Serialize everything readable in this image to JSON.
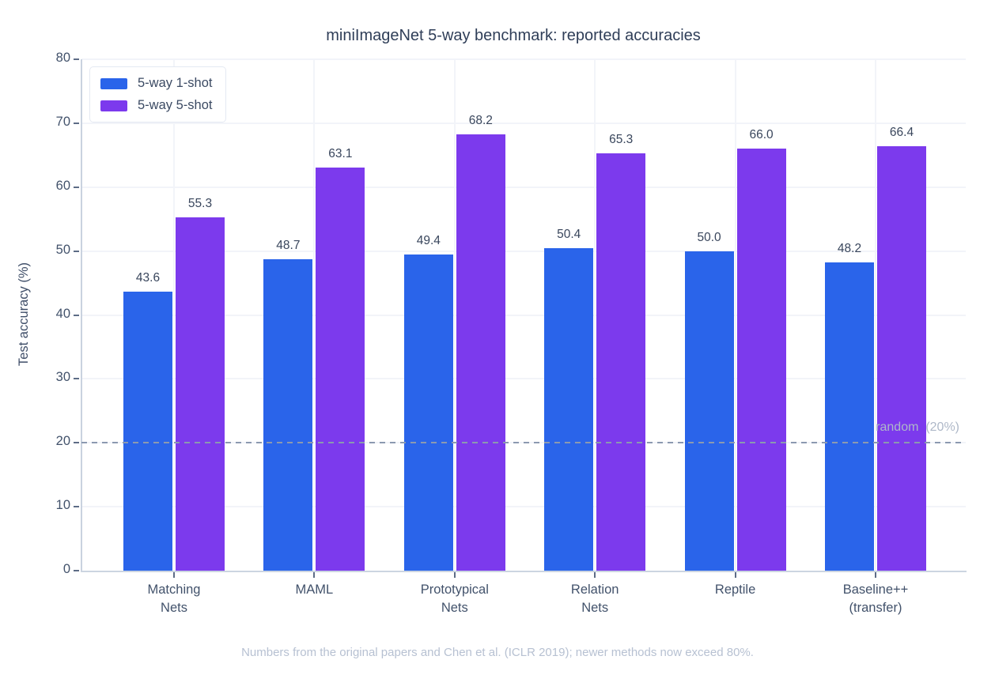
{
  "title": "miniImageNet 5-way benchmark: reported accuracies",
  "caption": "Numbers from the original papers and Chen et al. (ICLR 2019); newer methods now exceed 80%.",
  "colors": {
    "one_shot_blue": "#2a64ea",
    "five_shot_purple": "#7c3aed",
    "reference_line": "#8b99b0",
    "reference_label": "#aeb8c8",
    "text_slate": "#42526b",
    "caption_gray": "#b7c1d2"
  },
  "chart_data": {
    "type": "bar",
    "title": "miniImageNet 5-way benchmark: reported accuracies",
    "xlabel": "",
    "ylabel": "Test accuracy (%)",
    "ylim": [
      0,
      80
    ],
    "yticks": [
      0,
      10,
      20,
      30,
      40,
      50,
      60,
      70,
      80
    ],
    "grid": true,
    "legend_position": "upper left",
    "categories": [
      "Matching\nNets",
      "MAML",
      "Prototypical\nNets",
      "Relation\nNets",
      "Reptile",
      "Baseline++\n(transfer)"
    ],
    "series": [
      {
        "name": "5-way 1-shot",
        "color": "#2a64ea",
        "values": [
          43.6,
          48.7,
          49.4,
          50.4,
          50.0,
          48.2
        ]
      },
      {
        "name": "5-way 5-shot",
        "color": "#7c3aed",
        "values": [
          55.3,
          63.1,
          68.2,
          65.3,
          66.0,
          66.4
        ]
      }
    ],
    "annotation": {
      "text": "random  (20%)",
      "y": 20
    }
  }
}
